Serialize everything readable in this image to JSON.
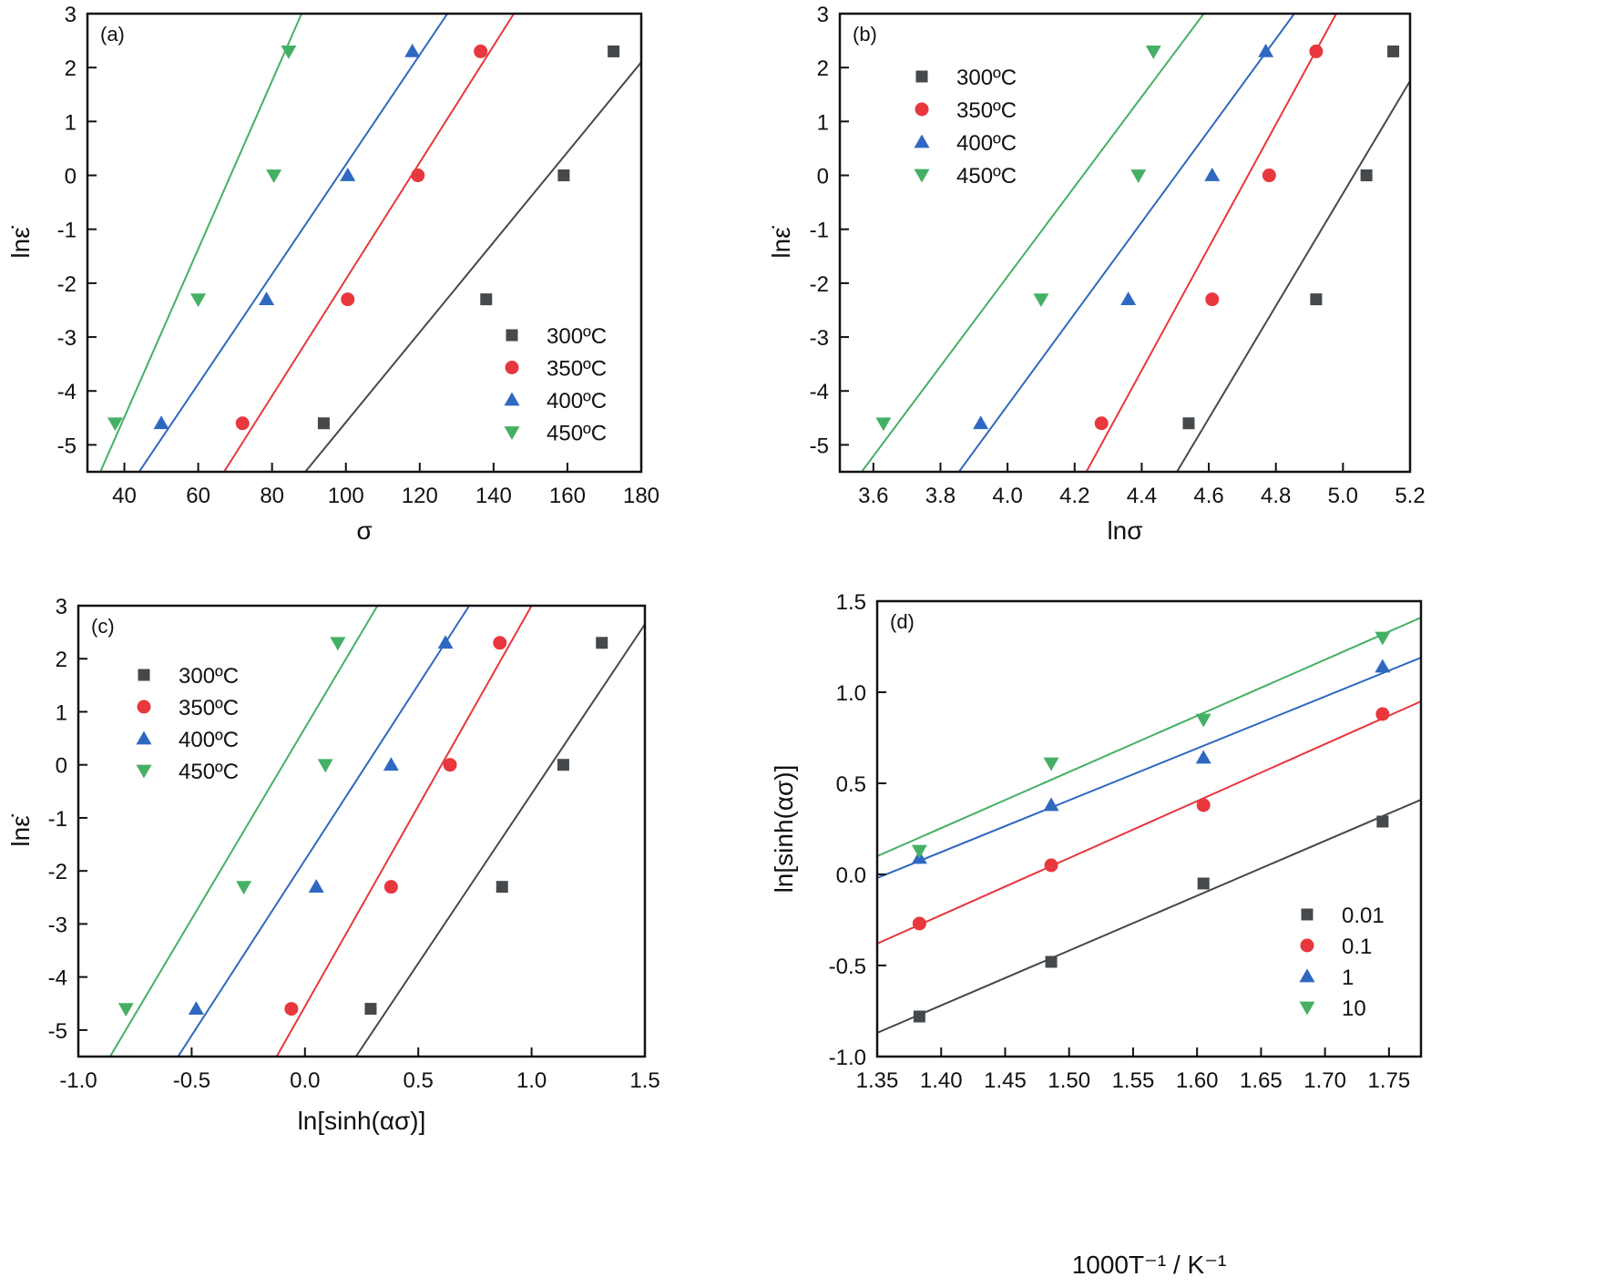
{
  "figure": {
    "colors": {
      "300": "#45494c",
      "350": "#e8373d",
      "400": "#2f68c0",
      "450": "#45b064",
      "axis": "#111111"
    }
  },
  "chart_data": [
    {
      "id": "a",
      "type": "scatter",
      "panel_label": "(a)",
      "title": "",
      "xlabel": "σ",
      "ylabel": "lnε̇",
      "xlim": [
        30,
        180
      ],
      "ylim": [
        -5.5,
        3
      ],
      "xticks": [
        40,
        60,
        80,
        100,
        120,
        140,
        160,
        180
      ],
      "xtick_labels": [
        "40",
        "60",
        "80",
        "100",
        "120",
        "140",
        "160",
        "180"
      ],
      "yticks": [
        3,
        2,
        1,
        0,
        -1,
        -2,
        -3,
        -4,
        -5
      ],
      "ytick_labels": [
        "3",
        "2",
        "1",
        "0",
        "-1",
        "-2",
        "-3",
        "-4",
        "-5"
      ],
      "grid": false,
      "legend_position": "bottom-right",
      "series": [
        {
          "name": "300ºC",
          "marker": "square",
          "color_key": "300",
          "x": [
            94,
            138,
            159,
            172.5
          ],
          "y": [
            -4.6,
            -2.3,
            0,
            2.3
          ],
          "fit": [
            [
              89,
              -5.5
            ],
            [
              180,
              2.1
            ]
          ]
        },
        {
          "name": "350ºC",
          "marker": "circle",
          "color_key": "350",
          "x": [
            72,
            100.5,
            119.5,
            136.5
          ],
          "y": [
            -4.6,
            -2.3,
            0,
            2.3
          ],
          "fit": [
            [
              67,
              -5.5
            ],
            [
              145.5,
              3
            ]
          ]
        },
        {
          "name": "400ºC",
          "marker": "triangle-up",
          "color_key": "400",
          "x": [
            50,
            78.5,
            100.5,
            118
          ],
          "y": [
            -4.6,
            -2.3,
            0,
            2.3
          ],
          "fit": [
            [
              44,
              -5.5
            ],
            [
              127.5,
              3
            ]
          ]
        },
        {
          "name": "450ºC",
          "marker": "triangle-down",
          "color_key": "450",
          "x": [
            37.5,
            60,
            80.5,
            84.5
          ],
          "y": [
            -4.6,
            -2.3,
            0,
            2.3
          ],
          "fit": [
            [
              33.5,
              -5.5
            ],
            [
              88,
              3
            ]
          ]
        }
      ]
    },
    {
      "id": "b",
      "type": "scatter",
      "panel_label": "(b)",
      "title": "",
      "xlabel": "lnσ",
      "ylabel": "lnε̇",
      "xlim": [
        3.5,
        5.2
      ],
      "ylim": [
        -5.5,
        3
      ],
      "xticks": [
        3.6,
        3.8,
        4.0,
        4.2,
        4.4,
        4.6,
        4.8,
        5.0,
        5.2
      ],
      "xtick_labels": [
        "3.6",
        "3.8",
        "4.0",
        "4.2",
        "4.4",
        "4.6",
        "4.8",
        "5.0",
        "5.2"
      ],
      "yticks": [
        3,
        2,
        1,
        0,
        -1,
        -2,
        -3,
        -4,
        -5
      ],
      "ytick_labels": [
        "3",
        "2",
        "1",
        "0",
        "-1",
        "-2",
        "-3",
        "-4",
        "-5"
      ],
      "grid": false,
      "legend_position": "top-left",
      "series": [
        {
          "name": "300ºC",
          "marker": "square",
          "color_key": "300",
          "x": [
            4.54,
            4.92,
            5.07,
            5.15
          ],
          "y": [
            -4.6,
            -2.3,
            0,
            2.3
          ],
          "fit": [
            [
              4.505,
              -5.5
            ],
            [
              5.2,
              1.75
            ]
          ]
        },
        {
          "name": "350ºC",
          "marker": "circle",
          "color_key": "350",
          "x": [
            4.28,
            4.61,
            4.78,
            4.92
          ],
          "y": [
            -4.6,
            -2.3,
            0,
            2.3
          ],
          "fit": [
            [
              4.235,
              -5.5
            ],
            [
              4.98,
              3
            ]
          ]
        },
        {
          "name": "400ºC",
          "marker": "triangle-up",
          "color_key": "400",
          "x": [
            3.92,
            4.36,
            4.61,
            4.77
          ],
          "y": [
            -4.6,
            -2.3,
            0,
            2.3
          ],
          "fit": [
            [
              3.855,
              -5.5
            ],
            [
              4.855,
              3
            ]
          ]
        },
        {
          "name": "450ºC",
          "marker": "triangle-down",
          "color_key": "450",
          "x": [
            3.63,
            4.1,
            4.39,
            4.435
          ],
          "y": [
            -4.6,
            -2.3,
            0,
            2.3
          ],
          "fit": [
            [
              3.565,
              -5.5
            ],
            [
              4.585,
              3
            ]
          ]
        }
      ]
    },
    {
      "id": "c",
      "type": "scatter",
      "panel_label": "(c)",
      "title": "",
      "xlabel": "ln[sinh(ασ)]",
      "ylabel": "lnε̇",
      "xlim": [
        -1.0,
        1.5
      ],
      "ylim": [
        -5.5,
        3
      ],
      "xticks": [
        -1.0,
        -0.5,
        0.0,
        0.5,
        1.0,
        1.5
      ],
      "xtick_labels": [
        "-1.0",
        "-0.5",
        "0.0",
        "0.5",
        "1.0",
        "1.5"
      ],
      "yticks": [
        3,
        2,
        1,
        0,
        -1,
        -2,
        -3,
        -4,
        -5
      ],
      "ytick_labels": [
        "3",
        "2",
        "1",
        "0",
        "-1",
        "-2",
        "-3",
        "-4",
        "-5"
      ],
      "grid": false,
      "legend_position": "top-left",
      "series": [
        {
          "name": "300ºC",
          "marker": "square",
          "color_key": "300",
          "x": [
            0.29,
            0.87,
            1.14,
            1.31
          ],
          "y": [
            -4.6,
            -2.3,
            0,
            2.3
          ],
          "fit": [
            [
              0.225,
              -5.5
            ],
            [
              1.5,
              2.65
            ]
          ]
        },
        {
          "name": "350ºC",
          "marker": "circle",
          "color_key": "350",
          "x": [
            -0.06,
            0.38,
            0.64,
            0.86
          ],
          "y": [
            -4.6,
            -2.3,
            0,
            2.3
          ],
          "fit": [
            [
              -0.125,
              -5.5
            ],
            [
              1.0,
              3
            ]
          ]
        },
        {
          "name": "400ºC",
          "marker": "triangle-up",
          "color_key": "400",
          "x": [
            -0.48,
            0.05,
            0.38,
            0.62
          ],
          "y": [
            -4.6,
            -2.3,
            0,
            2.3
          ],
          "fit": [
            [
              -0.56,
              -5.5
            ],
            [
              0.725,
              3
            ]
          ]
        },
        {
          "name": "450ºC",
          "marker": "triangle-down",
          "color_key": "450",
          "x": [
            -0.79,
            -0.27,
            0.09,
            0.145
          ],
          "y": [
            -4.6,
            -2.3,
            0,
            2.3
          ],
          "fit": [
            [
              -0.86,
              -5.5
            ],
            [
              0.32,
              3
            ]
          ]
        }
      ]
    },
    {
      "id": "d",
      "type": "scatter",
      "panel_label": "(d)",
      "title": "",
      "xlabel": "1000T⁻¹ / K⁻¹",
      "ylabel": "ln[sinh(ασ)]",
      "xlim": [
        1.35,
        1.775
      ],
      "ylim": [
        -1.0,
        1.5
      ],
      "xticks": [
        1.35,
        1.4,
        1.45,
        1.5,
        1.55,
        1.6,
        1.65,
        1.7,
        1.75
      ],
      "xtick_labels": [
        "1.35",
        "1.40",
        "1.45",
        "1.50",
        "1.55",
        "1.60",
        "1.65",
        "1.70",
        "1.75"
      ],
      "yticks": [
        1.5,
        1.0,
        0.5,
        0.0,
        -0.5,
        -1.0
      ],
      "ytick_labels": [
        "1.5",
        "1.0",
        "0.5",
        "0.0",
        "-0.5",
        "-1.0"
      ],
      "grid": false,
      "legend_position": "bottom-right",
      "series": [
        {
          "name": "0.01",
          "marker": "square",
          "color_key": "300",
          "x": [
            1.383,
            1.486,
            1.605,
            1.745
          ],
          "y": [
            -0.78,
            -0.48,
            -0.05,
            0.29
          ],
          "fit": [
            [
              1.35,
              -0.87
            ],
            [
              1.775,
              0.41
            ]
          ]
        },
        {
          "name": "0.1",
          "marker": "circle",
          "color_key": "350",
          "x": [
            1.383,
            1.486,
            1.605,
            1.745
          ],
          "y": [
            -0.27,
            0.05,
            0.38,
            0.88
          ],
          "fit": [
            [
              1.35,
              -0.38
            ],
            [
              1.775,
              0.95
            ]
          ]
        },
        {
          "name": "1",
          "marker": "triangle-up",
          "color_key": "400",
          "x": [
            1.383,
            1.486,
            1.605,
            1.745
          ],
          "y": [
            0.09,
            0.38,
            0.64,
            1.14
          ],
          "fit": [
            [
              1.35,
              -0.02
            ],
            [
              1.775,
              1.19
            ]
          ]
        },
        {
          "name": "10",
          "marker": "triangle-down",
          "color_key": "450",
          "x": [
            1.383,
            1.486,
            1.605,
            1.745
          ],
          "y": [
            0.13,
            0.61,
            0.85,
            1.3
          ],
          "fit": [
            [
              1.35,
              0.1
            ],
            [
              1.775,
              1.41
            ]
          ]
        }
      ]
    }
  ]
}
